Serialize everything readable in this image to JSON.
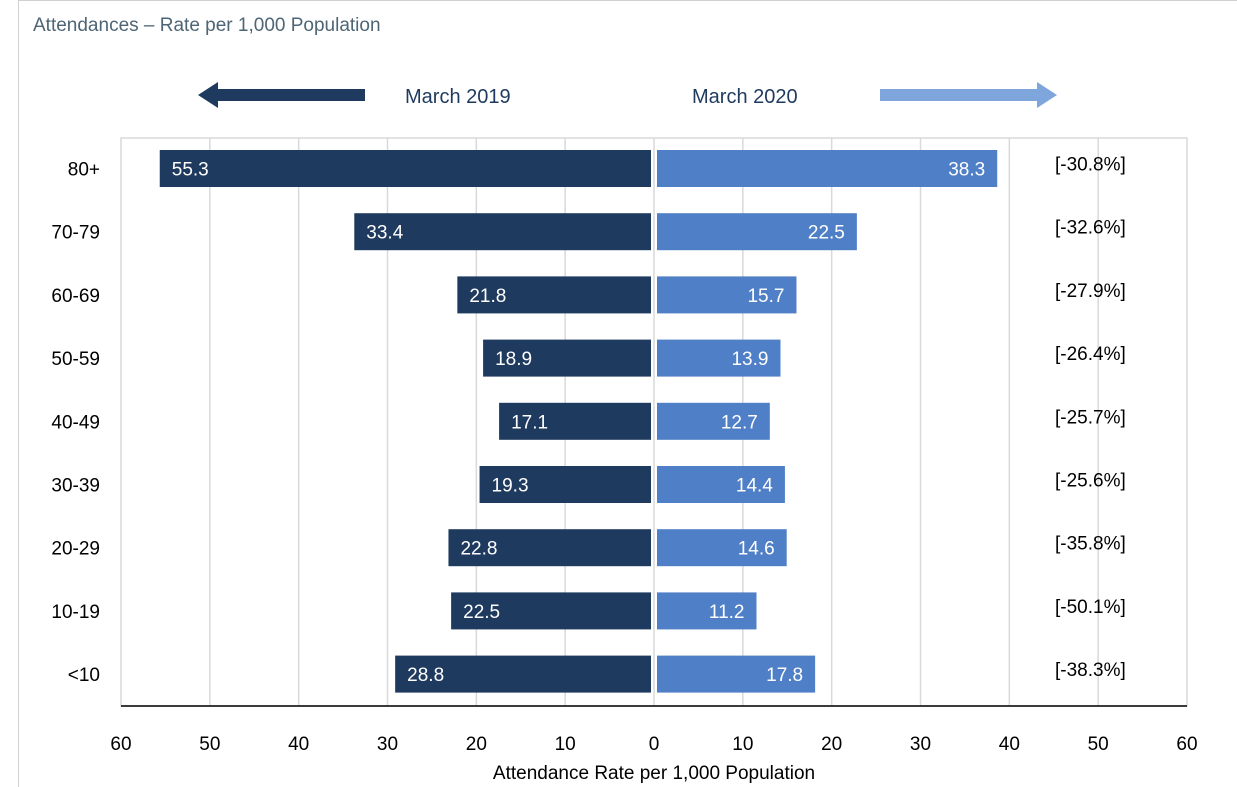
{
  "chart_data": {
    "type": "bar",
    "title": "Attendances – Rate per 1,000 Population",
    "xlabel": "Attendance Rate per 1,000 Population",
    "ylabel": "",
    "xlim": [
      -60,
      60
    ],
    "x_ticks": [
      "60",
      "50",
      "40",
      "30",
      "20",
      "10",
      "0",
      "10",
      "20",
      "30",
      "40",
      "50",
      "60"
    ],
    "grid": true,
    "categories": [
      "80+",
      "70-79",
      "60-69",
      "50-59",
      "40-49",
      "30-39",
      "20-29",
      "10-19",
      "<10"
    ],
    "series": [
      {
        "name": "March 2019",
        "color": "#1f3a5f",
        "direction": "left",
        "values": [
          55.3,
          33.4,
          21.8,
          18.9,
          17.1,
          19.3,
          22.8,
          22.5,
          28.8
        ]
      },
      {
        "name": "March 2020",
        "color": "#4f7fc6",
        "direction": "right",
        "values": [
          38.3,
          22.5,
          15.7,
          13.9,
          12.7,
          14.4,
          14.6,
          11.2,
          17.8
        ]
      }
    ],
    "change_labels": [
      "[-30.8%]",
      "[-32.6%]",
      "[-27.9%]",
      "[-26.4%]",
      "[-25.7%]",
      "[-25.6%]",
      "[-35.8%]",
      "[-50.1%]",
      "[-38.3%]"
    ],
    "legend": {
      "left_label": "March 2019",
      "right_label": "March 2020",
      "left_arrow_color": "#1f3a5f",
      "right_arrow_color": "#7ea6dc"
    }
  }
}
